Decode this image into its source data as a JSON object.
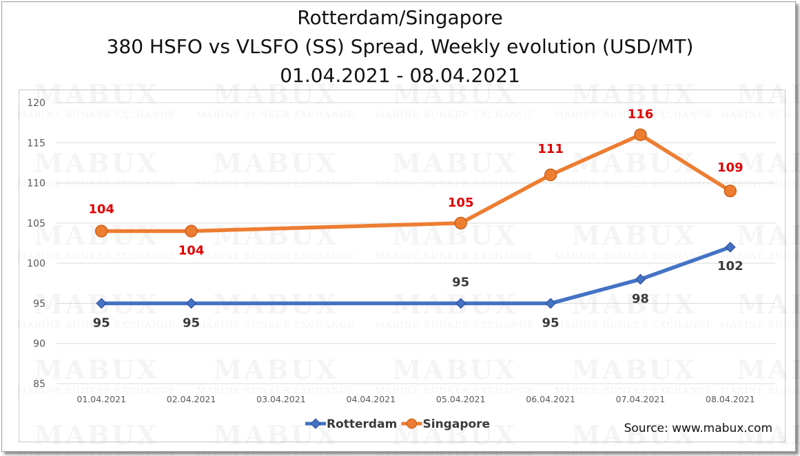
{
  "chart_data": {
    "type": "line",
    "title_lines": [
      "Rotterdam/Singapore",
      "380 HSFO vs VLSFO (SS) Spread, Weekly evolution (USD/MT)",
      "01.04.2021 - 08.04.2021"
    ],
    "categories": [
      "01.04.2021",
      "02.04.2021",
      "03.04.2021",
      "04.04.2021",
      "05.04.2021",
      "06.04.2021",
      "07.04.2021",
      "08.04.2021"
    ],
    "ylim": [
      85,
      120
    ],
    "yticks": [
      85,
      90,
      95,
      100,
      105,
      110,
      115,
      120
    ],
    "grid": true,
    "legend_position": "bottom",
    "series": [
      {
        "name": "Rotterdam",
        "color": "#4472c4",
        "marker_color": "#4472c4",
        "label_color": "#3a3a3a",
        "points": [
          {
            "x": "01.04.2021",
            "y": 95,
            "label": "95"
          },
          {
            "x": "02.04.2021",
            "y": 95,
            "label": "95"
          },
          {
            "x": "05.04.2021",
            "y": 95,
            "label": "95"
          },
          {
            "x": "06.04.2021",
            "y": 95,
            "label": "95"
          },
          {
            "x": "07.04.2021",
            "y": 98,
            "label": "98"
          },
          {
            "x": "08.04.2021",
            "y": 102,
            "label": "102"
          }
        ]
      },
      {
        "name": "Singapore",
        "color": "#ed7d31",
        "marker_color": "#ed7d31",
        "label_color": "#e00000",
        "points": [
          {
            "x": "01.04.2021",
            "y": 104,
            "label": "104"
          },
          {
            "x": "02.04.2021",
            "y": 104,
            "label": "104"
          },
          {
            "x": "05.04.2021",
            "y": 105,
            "label": "105"
          },
          {
            "x": "06.04.2021",
            "y": 111,
            "label": "111"
          },
          {
            "x": "07.04.2021",
            "y": 116,
            "label": "116"
          },
          {
            "x": "08.04.2021",
            "y": 109,
            "label": "109"
          }
        ]
      }
    ]
  },
  "source": "Source: www.mabux.com",
  "watermark": {
    "brand": "MABUX",
    "tagline": "Marine Bunker Exchange"
  }
}
